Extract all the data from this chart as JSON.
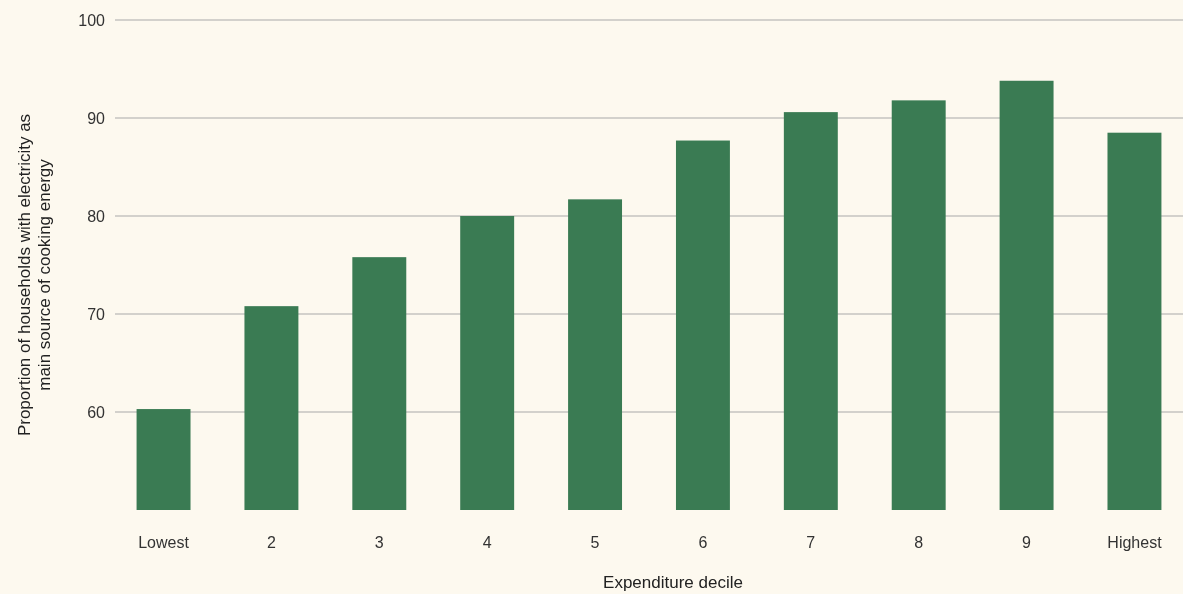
{
  "chart_data": {
    "type": "bar",
    "xlabel": "Expenditure decile",
    "ylabel": "Proportion of households with electricity as main source of cooking energy",
    "categories": [
      "Lowest",
      "2",
      "3",
      "4",
      "5",
      "6",
      "7",
      "8",
      "9",
      "Highest"
    ],
    "values": [
      60.3,
      70.8,
      75.8,
      80,
      81.7,
      87.7,
      90.6,
      91.8,
      93.8,
      88.5
    ],
    "color": "#3a7b53",
    "ylim": [
      50,
      100
    ],
    "yticks": [
      60,
      70,
      80,
      90,
      100
    ],
    "grid": "y"
  }
}
